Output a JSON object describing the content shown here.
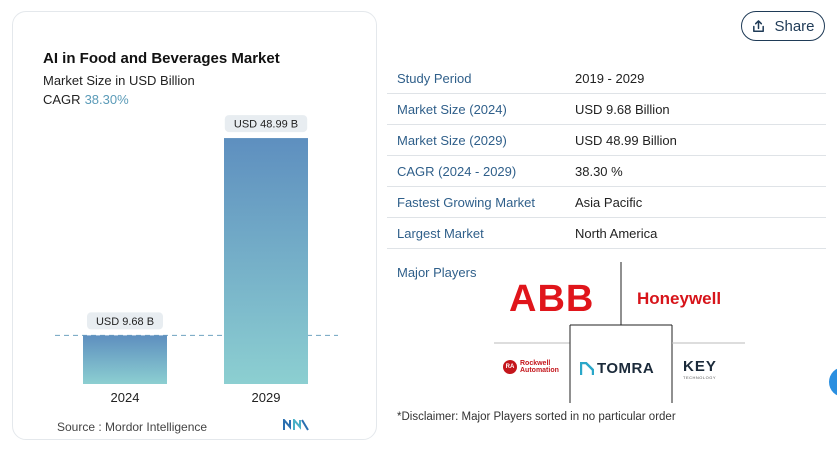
{
  "share": {
    "label": "Share"
  },
  "chart_card": {
    "title": "AI in Food and Beverages Market",
    "subtitle": "Market Size in USD Billion",
    "cagr_label": "CAGR",
    "cagr_value": "38.30%",
    "source": "Source :  Mordor Intelligence"
  },
  "chart_data": {
    "type": "bar",
    "categories": [
      "2024",
      "2029"
    ],
    "values": [
      9.68,
      48.99
    ],
    "data_labels": [
      "USD 9.68 B",
      "USD 48.99 B"
    ],
    "title": "AI in Food and Beverages Market",
    "xlabel": "",
    "ylabel": "Market Size in USD Billion",
    "ylim": [
      0,
      50
    ],
    "grid": false,
    "reference_line": "dashed line at 2024 value"
  },
  "table": {
    "rows": [
      {
        "label": "Study Period",
        "value": "2019 - 2029"
      },
      {
        "label": "Market Size (2024)",
        "value": "USD 9.68 Billion"
      },
      {
        "label": "Market Size (2029)",
        "value": "USD 48.99 Billion"
      },
      {
        "label": "CAGR (2024 - 2029)",
        "value": "38.30 %"
      },
      {
        "label": "Fastest Growing Market",
        "value": "Asia Pacific"
      },
      {
        "label": "Largest Market",
        "value": "North America"
      }
    ]
  },
  "players": {
    "label": "Major Players",
    "logos": {
      "abb": "ABB",
      "honeywell": "Honeywell",
      "rockwell_badge": "RA",
      "rockwell": "Rockwell Automation",
      "tomra": "TOMRA",
      "key": "KEY",
      "key_sub": "TECHNOLOGY"
    }
  },
  "disclaimer": "*Disclaimer: Major Players sorted in no particular order",
  "colors": {
    "bar_top": "#5e8fbf",
    "bar_bottom": "#8ccfd1",
    "accent_label": "#2f5f8a",
    "abb_red": "#e0151b",
    "honeywell_red": "#d7141a"
  }
}
